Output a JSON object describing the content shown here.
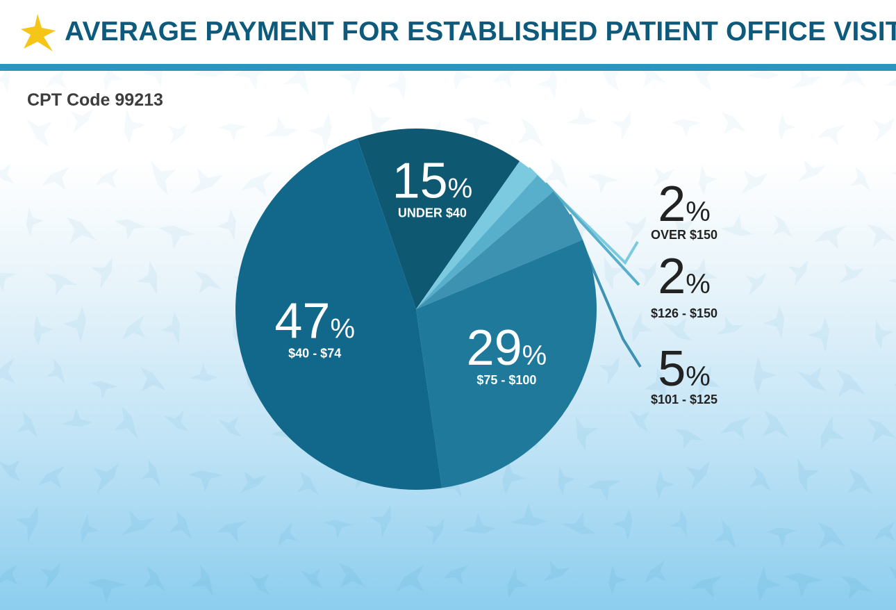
{
  "header": {
    "title": "AVERAGE PAYMENT FOR ESTABLISHED PATIENT OFFICE VISIT",
    "subtitle": "CPT Code 99213",
    "logo_icon": "star-icon"
  },
  "colors": {
    "title": "#0e5a7d",
    "rule": "#2a97b8",
    "logo": "#f5c518",
    "leader": "#4aa9c8",
    "caption_outside": "#222222",
    "caption_inside": "#ffffff"
  },
  "chart_data": {
    "type": "pie",
    "title": "AVERAGE PAYMENT FOR ESTABLISHED PATIENT OFFICE VISIT",
    "subtitle": "CPT Code 99213",
    "unit": "%",
    "slices": [
      {
        "value": 15,
        "pct_label": "15",
        "label": "UNDER $40",
        "color": "#0f5871",
        "placement": "inside"
      },
      {
        "value": 2,
        "pct_label": "2",
        "label": "OVER $150",
        "color": "#7ccae0",
        "placement": "outside"
      },
      {
        "value": 2,
        "pct_label": "2",
        "label": "$126 - $150",
        "color": "#57afcb",
        "placement": "outside"
      },
      {
        "value": 5,
        "pct_label": "5",
        "label": "$101 - $125",
        "color": "#3d92b2",
        "placement": "outside"
      },
      {
        "value": 29,
        "pct_label": "29",
        "label": "$75 - $100",
        "color": "#1f799b",
        "placement": "inside"
      },
      {
        "value": 47,
        "pct_label": "47",
        "label": "$40 - $74",
        "color": "#11688a",
        "placement": "inside"
      }
    ]
  }
}
